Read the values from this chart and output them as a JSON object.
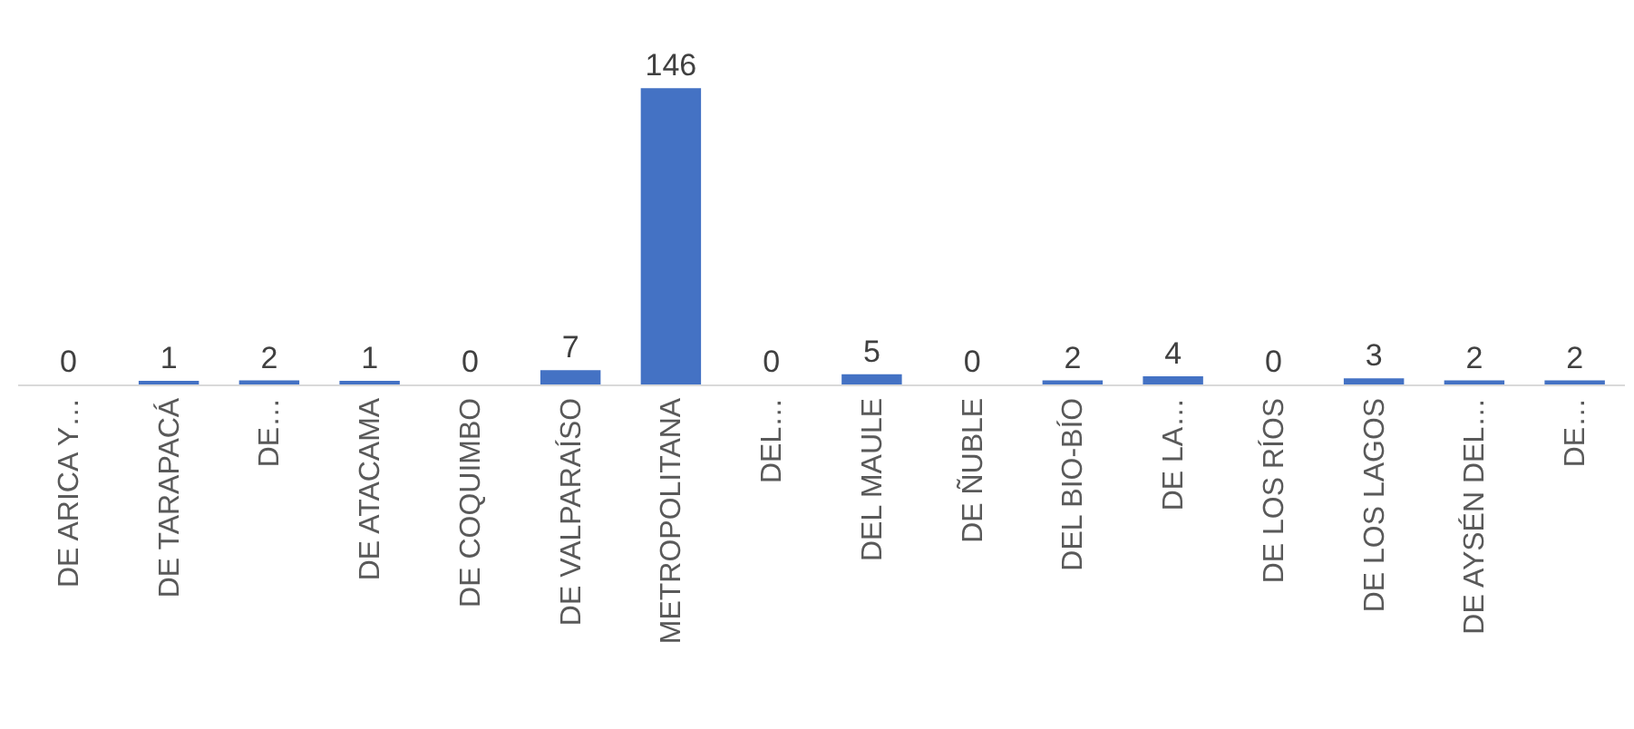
{
  "chart_data": {
    "type": "bar",
    "categories": [
      "DE ARICA Y…",
      "DE TARAPACÁ",
      "DE…",
      "DE ATACAMA",
      "DE COQUIMBO",
      "DE VALPARAÍSO",
      "METROPOLITANA",
      "DEL…",
      "DEL MAULE",
      "DE ÑUBLE",
      "DEL BIO-BÍO",
      "DE LA…",
      "DE LOS RÍOS",
      "DE LOS LAGOS",
      "DE AYSÉN DEL…",
      "DE…"
    ],
    "values": [
      0,
      1,
      2,
      1,
      0,
      7,
      146,
      0,
      5,
      0,
      2,
      4,
      0,
      3,
      2,
      2
    ],
    "color": "#4472c4",
    "data_labels": true
  }
}
